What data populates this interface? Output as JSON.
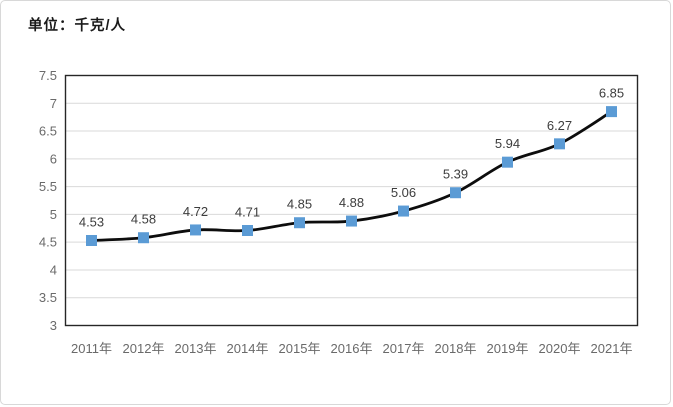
{
  "frame": {
    "title": "单位：千克/人"
  },
  "chart_data": {
    "type": "line",
    "title": "单位：千克/人",
    "categories": [
      "2011年",
      "2012年",
      "2013年",
      "2014年",
      "2015年",
      "2016年",
      "2017年",
      "2018年",
      "2019年",
      "2020年",
      "2021年"
    ],
    "values": [
      4.53,
      4.58,
      4.72,
      4.71,
      4.85,
      4.88,
      5.06,
      5.39,
      5.94,
      6.27,
      6.85
    ],
    "xlabel": "",
    "ylabel": "",
    "ylim": [
      3,
      7.5
    ],
    "ytick_step": 0.5,
    "ytick_labels": [
      "3",
      "3.5",
      "4",
      "4.5",
      "5",
      "5.5",
      "6",
      "6.5",
      "7",
      "7.5"
    ],
    "grid": "horizontal",
    "legend": "none",
    "data_labels_shown": true,
    "colors": {
      "line": "#0d0d0d",
      "marker": "#5b9bd5",
      "gridline": "#d9d9d9",
      "plot_border": "#262626",
      "axis_text": "#6a6a6a",
      "data_label_text": "#3d3d3d",
      "frame_border": "#d8d8d8",
      "background": "#ffffff"
    }
  }
}
